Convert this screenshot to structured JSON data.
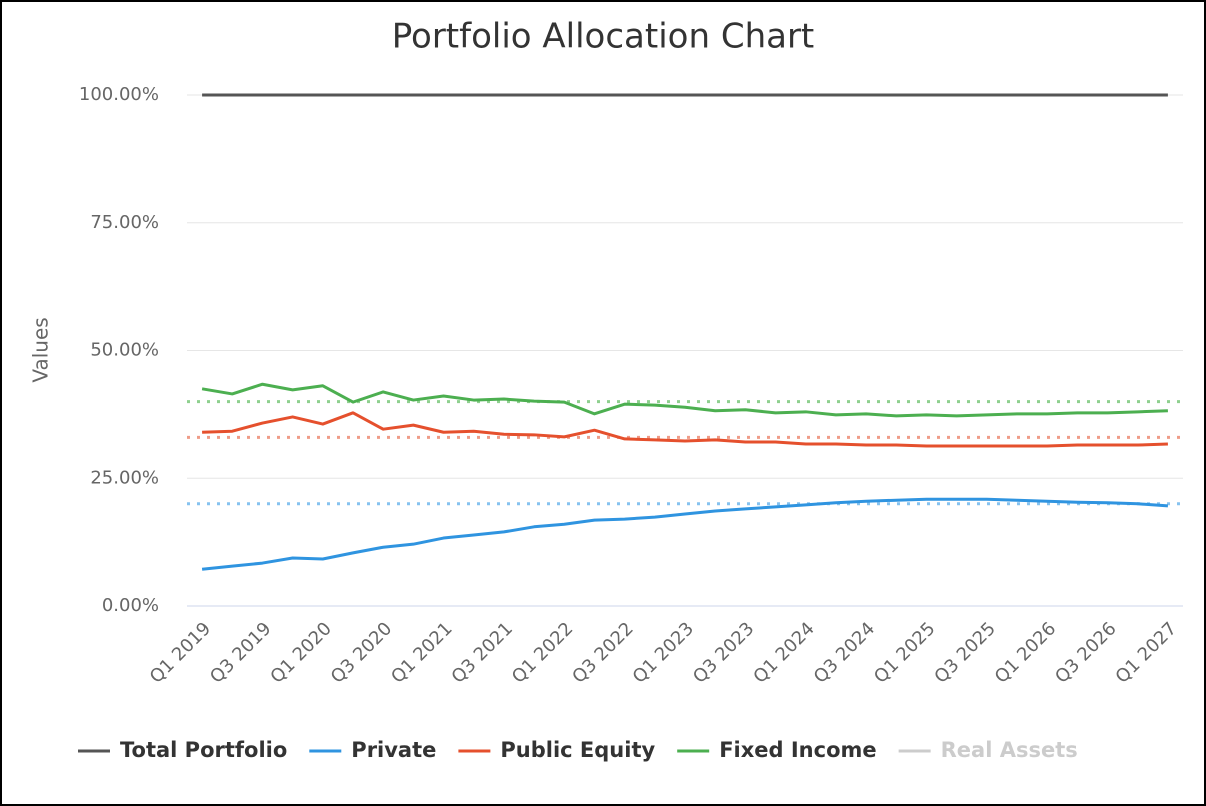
{
  "chart_data": {
    "type": "line",
    "title": "Portfolio Allocation Chart",
    "y_axis_label": "Values",
    "categories": [
      "Q1 2019",
      null,
      "Q3 2019",
      null,
      "Q1 2020",
      null,
      "Q3 2020",
      null,
      "Q1 2021",
      null,
      "Q3 2021",
      null,
      "Q1 2022",
      null,
      "Q3 2022",
      null,
      "Q1 2023",
      null,
      "Q3 2023",
      null,
      "Q1 2024",
      null,
      "Q3 2024",
      null,
      "Q1 2025",
      null,
      "Q3 2025",
      null,
      "Q1 2026",
      null,
      "Q3 2026",
      null,
      "Q1 2027"
    ],
    "ylim": [
      0,
      100
    ],
    "yticks": [
      {
        "value": 0,
        "label": "0.00%"
      },
      {
        "value": 25,
        "label": "25.00%"
      },
      {
        "value": 50,
        "label": "50.00%"
      },
      {
        "value": 75,
        "label": "75.00%"
      },
      {
        "value": 100,
        "label": "100.00%"
      }
    ],
    "grid": true,
    "legend": "bottom",
    "series": [
      {
        "name": "Total Portfolio",
        "color": "#555555",
        "values": [
          100,
          100,
          100,
          100,
          100,
          100,
          100,
          100,
          100,
          100,
          100,
          100,
          100,
          100,
          100,
          100,
          100,
          100,
          100,
          100,
          100,
          100,
          100,
          100,
          100,
          100,
          100,
          100,
          100,
          100,
          100,
          100,
          100
        ]
      },
      {
        "name": "Private",
        "color": "#2f94e0",
        "values": [
          7.2,
          7.8,
          8.4,
          9.4,
          9.2,
          10.4,
          11.5,
          12.1,
          13.3,
          13.9,
          14.5,
          15.5,
          16.0,
          16.8,
          17.0,
          17.4,
          18.0,
          18.6,
          19.0,
          19.4,
          19.8,
          20.2,
          20.5,
          20.7,
          20.9,
          20.9,
          20.9,
          20.7,
          20.5,
          20.3,
          20.2,
          20.0,
          19.6
        ]
      },
      {
        "name": "Public Equity",
        "color": "#e5502d",
        "values": [
          34.0,
          34.2,
          35.8,
          37.0,
          35.6,
          37.8,
          34.6,
          35.4,
          34.0,
          34.2,
          33.6,
          33.5,
          33.1,
          34.4,
          32.7,
          32.5,
          32.3,
          32.5,
          32.1,
          32.1,
          31.7,
          31.7,
          31.5,
          31.5,
          31.3,
          31.3,
          31.3,
          31.3,
          31.3,
          31.5,
          31.5,
          31.5,
          31.7
        ]
      },
      {
        "name": "Fixed Income",
        "color": "#4caf50",
        "values": [
          42.5,
          41.5,
          43.4,
          42.3,
          43.1,
          39.9,
          41.9,
          40.3,
          41.1,
          40.3,
          40.5,
          40.1,
          39.9,
          37.6,
          39.5,
          39.3,
          38.9,
          38.2,
          38.4,
          37.8,
          38.0,
          37.4,
          37.6,
          37.2,
          37.4,
          37.2,
          37.4,
          37.6,
          37.6,
          37.8,
          37.8,
          38.0,
          38.2
        ]
      },
      {
        "name": "Real Assets",
        "color": "#cccccc",
        "visible": false
      }
    ],
    "targets": [
      {
        "value": 40,
        "color": "#8fd08f"
      },
      {
        "value": 33,
        "color": "#ef9c88"
      },
      {
        "value": 20,
        "color": "#86c2ef"
      }
    ]
  }
}
